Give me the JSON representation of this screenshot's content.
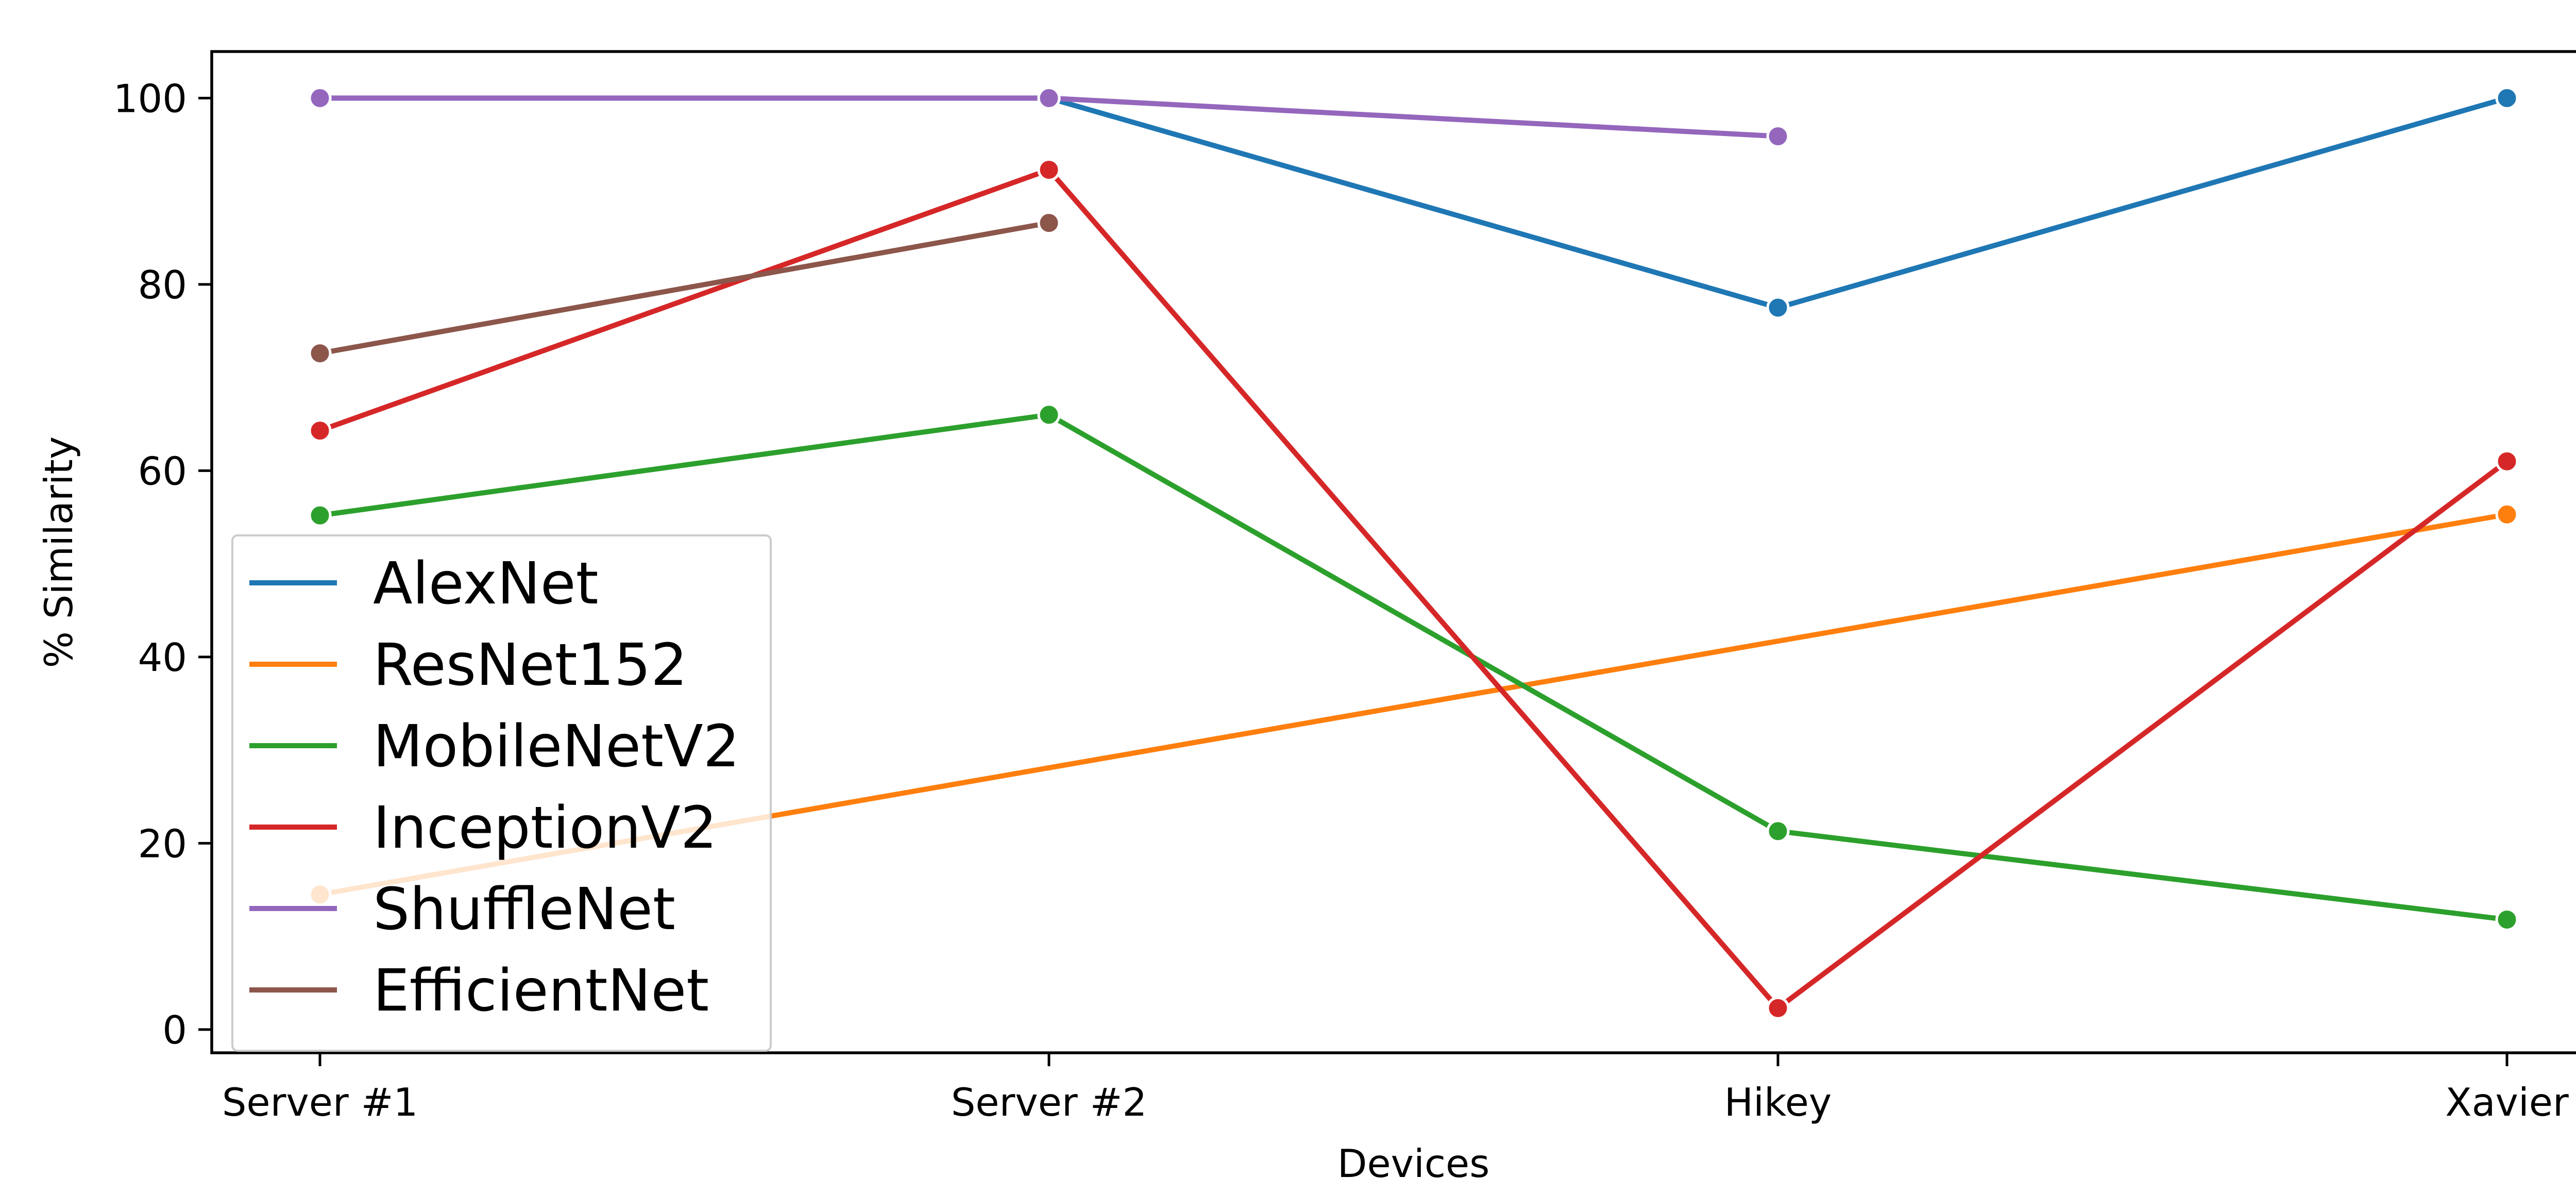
{
  "chart_data": {
    "type": "line",
    "title": "",
    "xlabel": "Devices",
    "ylabel": "% Similarity",
    "categories": [
      "Server #1",
      "Server #2",
      "Hikey",
      "Xavier"
    ],
    "ylim": [
      -2.5,
      105
    ],
    "yticks": [
      0,
      20,
      40,
      60,
      80,
      100
    ],
    "grid": false,
    "legend_position": "lower-left",
    "series": [
      {
        "name": "AlexNet",
        "color": "#1f77b4",
        "values": [
          100,
          100,
          77.5,
          100
        ]
      },
      {
        "name": "ResNet152",
        "color": "#ff7f0e",
        "values": [
          14.5,
          null,
          null,
          55.3
        ]
      },
      {
        "name": "MobileNetV2",
        "color": "#2ca02c",
        "values": [
          55.2,
          66.0,
          21.3,
          11.8
        ]
      },
      {
        "name": "InceptionV2",
        "color": "#d62728",
        "values": [
          64.3,
          92.3,
          2.3,
          61.0
        ]
      },
      {
        "name": "ShuffleNet",
        "color": "#9467bd",
        "values": [
          100,
          100,
          95.9,
          null
        ]
      },
      {
        "name": "EfficientNet",
        "color": "#8c564b",
        "values": [
          72.6,
          86.6,
          null,
          null
        ]
      }
    ]
  }
}
